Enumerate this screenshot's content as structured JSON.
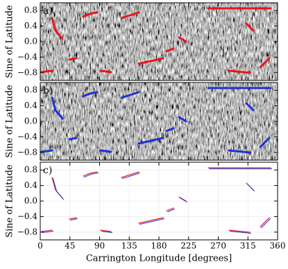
{
  "chart_data": [
    {
      "type": "image",
      "label": "a)",
      "ylabel": "Sine of Latitude",
      "xlim": [
        0,
        360
      ],
      "ylim": [
        -1,
        1
      ],
      "xticks": [
        0,
        45,
        90,
        135,
        180,
        225,
        270,
        315,
        360
      ],
      "yticks": [
        {
          "value": -0.8,
          "label": "−0.8"
        },
        {
          "value": -0.4,
          "label": "−0.4"
        },
        {
          "value": 0,
          "label": "0.0"
        },
        0.4,
        0.8
      ],
      "color": "#e8141c",
      "grid": false
    },
    {
      "type": "image",
      "label": "b)",
      "ylabel": "Sine of Latitude",
      "xlim": [
        0,
        360
      ],
      "ylim": [
        -1,
        1
      ],
      "xticks": [
        0,
        45,
        90,
        135,
        180,
        225,
        270,
        315,
        360
      ],
      "yticks": [
        {
          "value": -0.8,
          "label": "−0.8"
        },
        {
          "value": -0.4,
          "label": "−0.4"
        },
        {
          "value": 0,
          "label": "0.0"
        },
        0.4,
        0.8
      ],
      "color": "#1f2fd6",
      "grid": false
    },
    {
      "type": "contour",
      "label": "c)",
      "ylabel": "Sine of Latitude",
      "xlabel": "Carrington Longitude [degrees]",
      "xlim": [
        0,
        360
      ],
      "ylim": [
        -1,
        1
      ],
      "xticks": [
        0,
        45,
        90,
        135,
        180,
        225,
        270,
        315,
        360
      ],
      "yticks": [
        {
          "value": -0.8,
          "label": "−0.8"
        },
        {
          "value": -0.4,
          "label": "−0.4"
        },
        {
          "value": 0,
          "label": "0.0"
        },
        0.4,
        0.8
      ],
      "grid": true
    }
  ]
}
